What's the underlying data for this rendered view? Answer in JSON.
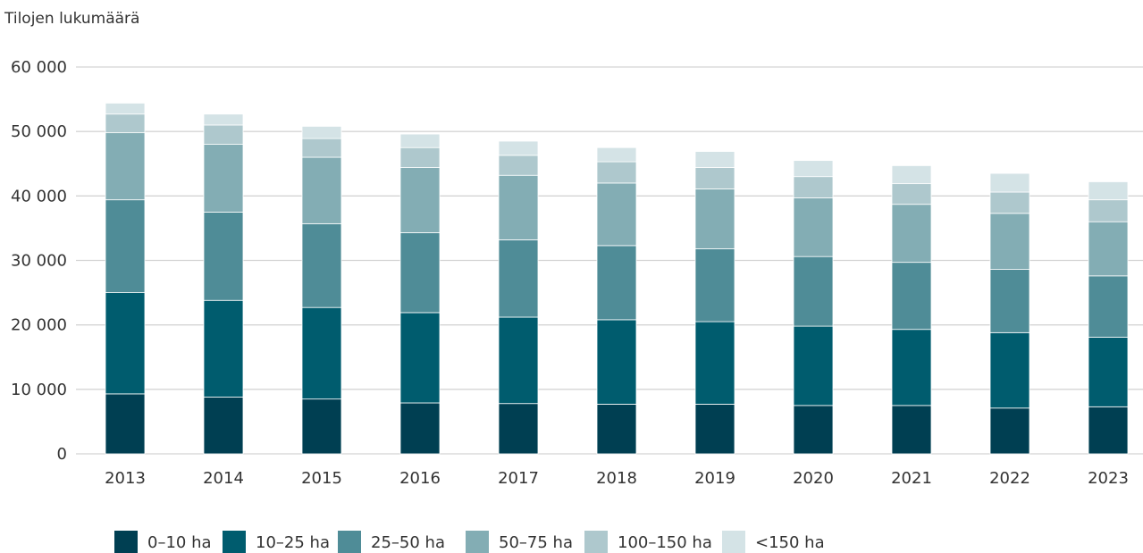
{
  "chart_data": {
    "type": "bar",
    "stacked": true,
    "title": "",
    "ylabel": "Tilojen lukumäärä",
    "xlabel": "",
    "ylim": [
      0,
      60000
    ],
    "yticks": [
      0,
      10000,
      20000,
      30000,
      40000,
      50000,
      60000
    ],
    "ytick_labels": [
      "0",
      "10 000",
      "20 000",
      "30 000",
      "40 000",
      "50 000",
      "60 000"
    ],
    "grid": true,
    "legend_position": "bottom",
    "categories": [
      "2013",
      "2014",
      "2015",
      "2016",
      "2017",
      "2018",
      "2019",
      "2020",
      "2021",
      "2022",
      "2023"
    ],
    "series": [
      {
        "name": "0–10 ha",
        "color": "#003f52",
        "values": [
          9300,
          8800,
          8500,
          7900,
          7800,
          7700,
          7700,
          7500,
          7500,
          7100,
          7300
        ]
      },
      {
        "name": "10–25 ha",
        "color": "#005c6e",
        "values": [
          15700,
          15000,
          14200,
          14000,
          13400,
          13100,
          12800,
          12300,
          11800,
          11700,
          10800
        ]
      },
      {
        "name": "25–50 ha",
        "color": "#4f8c97",
        "values": [
          14400,
          13700,
          13000,
          12400,
          12000,
          11500,
          11300,
          10800,
          10400,
          9800,
          9500
        ]
      },
      {
        "name": "50–75 ha",
        "color": "#83adb4",
        "values": [
          10400,
          10500,
          10300,
          10100,
          10000,
          9700,
          9300,
          9100,
          9000,
          8700,
          8400
        ]
      },
      {
        "name": "100–150 ha",
        "color": "#aec8cd",
        "values": [
          2900,
          3000,
          2900,
          3100,
          3100,
          3300,
          3300,
          3300,
          3200,
          3300,
          3400
        ]
      },
      {
        "name": "<150 ha",
        "color": "#d4e3e6",
        "values": [
          1700,
          1700,
          1900,
          2100,
          2200,
          2200,
          2500,
          2500,
          2800,
          2900,
          2800
        ]
      }
    ]
  }
}
